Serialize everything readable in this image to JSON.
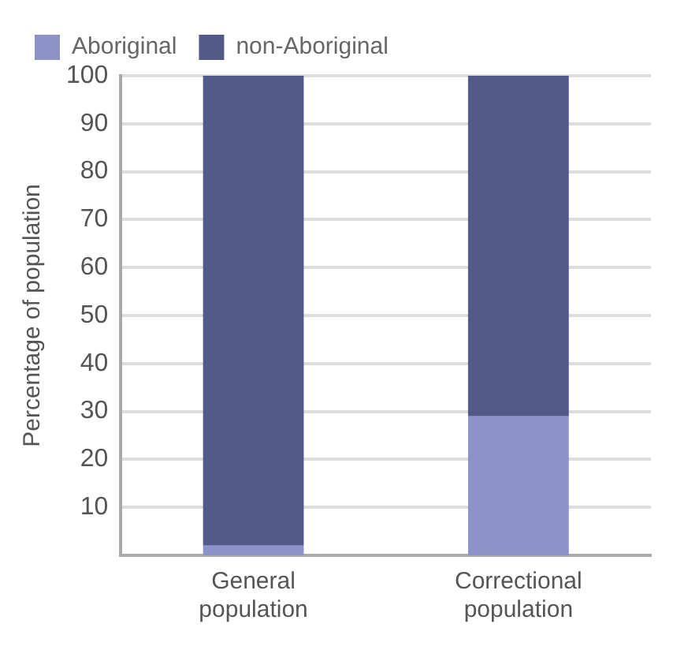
{
  "chart_data": {
    "type": "bar",
    "stacked": true,
    "ylabel": "Percentage of population",
    "categories": [
      "General population",
      "Correctional population"
    ],
    "series": [
      {
        "name": "Aboriginal",
        "color": "#8c93c8",
        "values": [
          2,
          29
        ]
      },
      {
        "name": "non-Aboriginal",
        "color": "#525a8a",
        "values": [
          98,
          71
        ]
      }
    ],
    "ylim": [
      0,
      100
    ],
    "yticks": [
      10,
      20,
      30,
      40,
      50,
      60,
      70,
      80,
      90,
      100
    ],
    "grid": "y",
    "legend": "top left"
  }
}
